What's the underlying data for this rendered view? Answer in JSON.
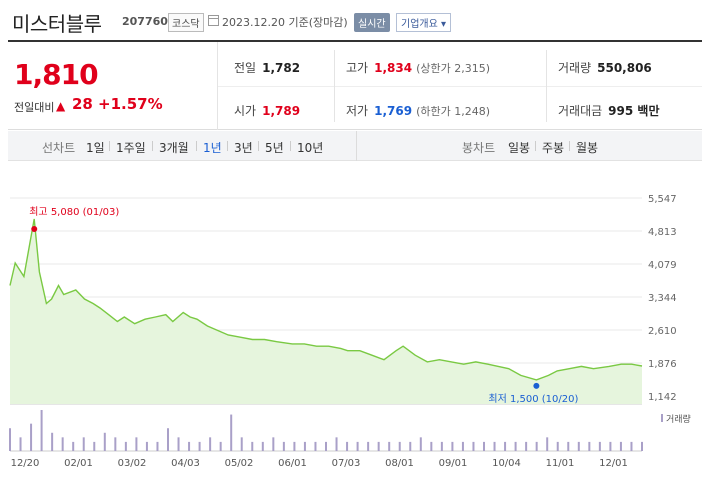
{
  "header": {
    "name": "미스터블루",
    "code": "207760",
    "market": "코스닥",
    "date_text": "2023.12.20 기준(장마감)",
    "realtime_label": "실시간",
    "company_btn": "기업개요 ▾"
  },
  "price": {
    "current": "1,810",
    "change_label": "전일대비",
    "change_arrow": "▲",
    "change": "28",
    "change_pct": "+1.57%",
    "prev_label": "전일",
    "prev": "1,782",
    "high_label": "고가",
    "high": "1,834",
    "upper_limit": "(상한가 2,315)",
    "volume_label": "거래량",
    "volume": "550,806",
    "open_label": "시가",
    "open": "1,789",
    "low_label": "저가",
    "low": "1,769",
    "lower_limit": "(하한가 1,248)",
    "amount_label": "거래대금",
    "amount": "995 백만"
  },
  "period_bar": {
    "line_label": "선차트",
    "line_options": [
      "1일",
      "1주일",
      "3개월",
      "1년",
      "3년",
      "5년",
      "10년"
    ],
    "line_active": "1년",
    "candle_label": "봉차트",
    "candle_options": [
      "일봉",
      "주봉",
      "월봉"
    ]
  },
  "chart_data": {
    "type": "area",
    "x_tick_labels": [
      "12/20",
      "02/01",
      "03/02",
      "04/03",
      "05/02",
      "06/01",
      "07/03",
      "08/01",
      "09/01",
      "10/04",
      "11/01",
      "12/01"
    ],
    "y_tick_labels": [
      "5,547",
      "4,813",
      "4,079",
      "3,344",
      "2,610",
      "1,876",
      "1,142"
    ],
    "ylim": [
      1142,
      5547
    ],
    "series": [
      {
        "x": [
          "2022-12-20",
          "2022-12-23",
          "2022-12-28",
          "2023-01-03",
          "2023-01-06",
          "2023-01-10",
          "2023-01-13",
          "2023-01-17",
          "2023-01-20",
          "2023-01-27",
          "2023-02-01",
          "2023-02-06",
          "2023-02-10",
          "2023-02-15",
          "2023-02-20",
          "2023-02-24",
          "2023-03-02",
          "2023-03-08",
          "2023-03-14",
          "2023-03-20",
          "2023-03-24",
          "2023-03-30",
          "2023-04-03",
          "2023-04-07",
          "2023-04-13",
          "2023-04-19",
          "2023-04-25",
          "2023-05-02",
          "2023-05-09",
          "2023-05-16",
          "2023-05-23",
          "2023-06-01",
          "2023-06-08",
          "2023-06-15",
          "2023-06-22",
          "2023-06-29",
          "2023-07-03",
          "2023-07-10",
          "2023-07-17",
          "2023-07-24",
          "2023-07-31",
          "2023-08-04",
          "2023-08-11",
          "2023-08-18",
          "2023-08-25",
          "2023-09-01",
          "2023-09-08",
          "2023-09-15",
          "2023-09-22",
          "2023-10-04",
          "2023-10-11",
          "2023-10-20",
          "2023-10-27",
          "2023-11-01",
          "2023-11-08",
          "2023-11-15",
          "2023-11-22",
          "2023-12-01",
          "2023-12-08",
          "2023-12-14",
          "2023-12-20"
        ],
        "values": [
          3600,
          4100,
          3800,
          5080,
          3900,
          3200,
          3300,
          3600,
          3400,
          3500,
          3300,
          3200,
          3100,
          2950,
          2800,
          2900,
          2750,
          2850,
          2900,
          2950,
          2800,
          3000,
          2900,
          2850,
          2700,
          2600,
          2500,
          2450,
          2400,
          2400,
          2350,
          2300,
          2300,
          2250,
          2250,
          2200,
          2150,
          2150,
          2050,
          1950,
          2150,
          2250,
          2050,
          1900,
          1950,
          1900,
          1850,
          1900,
          1850,
          1750,
          1600,
          1500,
          1600,
          1700,
          1750,
          1800,
          1750,
          1800,
          1850,
          1850,
          1810
        ]
      }
    ],
    "annotations": [
      {
        "label": "최고 5,080 (01/03)",
        "x": "2023-01-03",
        "y": 5080,
        "color": "#e0001b"
      },
      {
        "label": "최저 1,500 (10/20)",
        "x": "2023-10-20",
        "y": 1500,
        "color": "#1a5fd3"
      }
    ],
    "volume_label": "거래량",
    "volume": [
      5,
      3,
      6,
      9,
      4,
      3,
      2,
      3,
      2,
      4,
      3,
      2,
      3,
      2,
      2,
      5,
      3,
      2,
      2,
      3,
      2,
      8,
      3,
      2,
      2,
      3,
      2,
      2,
      2,
      2,
      2,
      3,
      2,
      2,
      2,
      2,
      2,
      2,
      2,
      3,
      2,
      2,
      2,
      2,
      2,
      2,
      2,
      2,
      2,
      2,
      2,
      3,
      2,
      2,
      2,
      2,
      2,
      2,
      2,
      2,
      2
    ],
    "colors": {
      "line": "#7ac943",
      "fill": "#e6f5dd",
      "volume": "#a9a0c8",
      "grid": "#e8e8e8"
    }
  }
}
